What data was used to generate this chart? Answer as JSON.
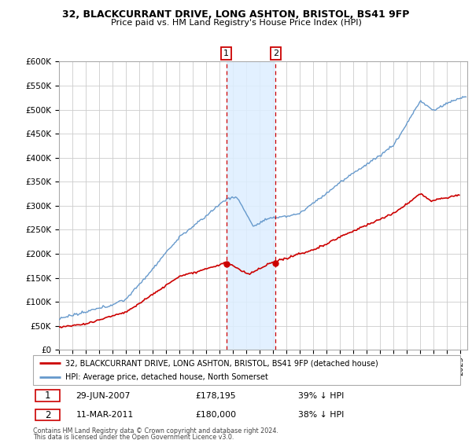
{
  "title1": "32, BLACKCURRANT DRIVE, LONG ASHTON, BRISTOL, BS41 9FP",
  "title2": "Price paid vs. HM Land Registry's House Price Index (HPI)",
  "transaction1_date": "29-JUN-2007",
  "transaction1_price": 178195,
  "transaction1_label": "£178,195",
  "transaction1_pct": "39% ↓ HPI",
  "transaction2_date": "11-MAR-2011",
  "transaction2_price": 180000,
  "transaction2_label": "£180,000",
  "transaction2_pct": "38% ↓ HPI",
  "legend_line1": "32, BLACKCURRANT DRIVE, LONG ASHTON, BRISTOL, BS41 9FP (detached house)",
  "legend_line2": "HPI: Average price, detached house, North Somerset",
  "footnote1": "Contains HM Land Registry data © Crown copyright and database right 2024.",
  "footnote2": "This data is licensed under the Open Government Licence v3.0.",
  "price_color": "#cc0000",
  "hpi_color": "#6699cc",
  "shade_color": "#ddeeff",
  "vline_color": "#cc0000",
  "ylim_max": 600000,
  "ylim_min": 0,
  "xlim_min": 1995.0,
  "xlim_max": 2025.5,
  "transaction1_x": 2007.49,
  "transaction2_x": 2011.19,
  "background_color": "#ffffff",
  "grid_color": "#cccccc"
}
